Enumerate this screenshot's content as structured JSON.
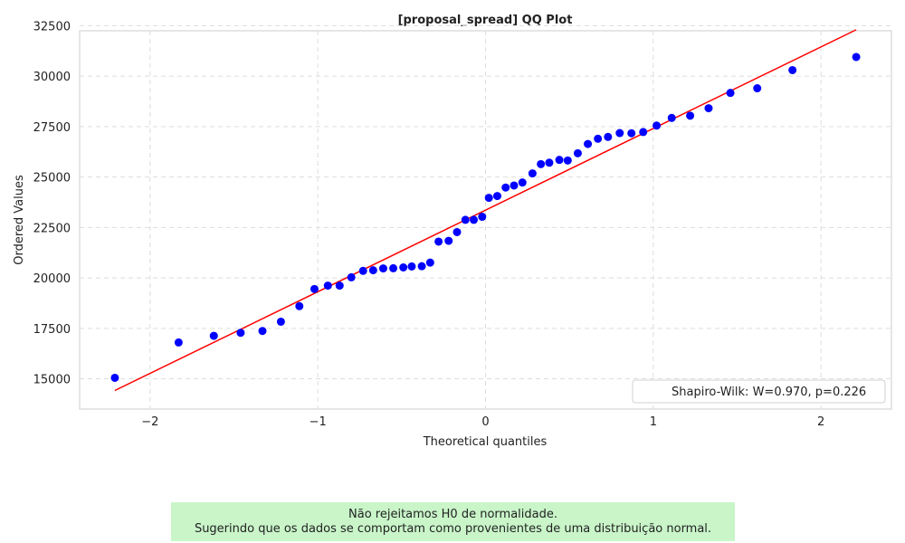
{
  "chart_data": {
    "type": "scatter",
    "title": "[proposal_spread] QQ Plot",
    "xlabel": "Theoretical quantiles",
    "ylabel": "Ordered Values",
    "xlim": [
      -2.42,
      2.42
    ],
    "ylim": [
      13500,
      32250
    ],
    "xticks": [
      -2,
      -1,
      0,
      1,
      2
    ],
    "xtick_labels": [
      "−2",
      "−1",
      "0",
      "1",
      "2"
    ],
    "yticks": [
      15000,
      17500,
      20000,
      22500,
      25000,
      27500,
      30000,
      32500
    ],
    "ytick_labels": [
      "15000",
      "17500",
      "20000",
      "22500",
      "25000",
      "27500",
      "30000",
      "32500"
    ],
    "grid": true,
    "legend_position": "lower-right",
    "legend_text": "Shapiro-Wilk: W=0.970, p=0.226",
    "point_color": "#0000ff",
    "line_color": "#ff0000",
    "points": [
      {
        "x": -2.21,
        "y": 15050
      },
      {
        "x": -1.83,
        "y": 16800
      },
      {
        "x": -1.62,
        "y": 17130
      },
      {
        "x": -1.46,
        "y": 17280
      },
      {
        "x": -1.33,
        "y": 17370
      },
      {
        "x": -1.22,
        "y": 17830
      },
      {
        "x": -1.11,
        "y": 18600
      },
      {
        "x": -1.02,
        "y": 19450
      },
      {
        "x": -0.94,
        "y": 19620
      },
      {
        "x": -0.87,
        "y": 19620
      },
      {
        "x": -0.8,
        "y": 20030
      },
      {
        "x": -0.73,
        "y": 20350
      },
      {
        "x": -0.67,
        "y": 20380
      },
      {
        "x": -0.61,
        "y": 20470
      },
      {
        "x": -0.55,
        "y": 20480
      },
      {
        "x": -0.49,
        "y": 20520
      },
      {
        "x": -0.44,
        "y": 20570
      },
      {
        "x": -0.38,
        "y": 20580
      },
      {
        "x": -0.33,
        "y": 20760
      },
      {
        "x": -0.28,
        "y": 21800
      },
      {
        "x": -0.22,
        "y": 21840
      },
      {
        "x": -0.17,
        "y": 22270
      },
      {
        "x": -0.12,
        "y": 22880
      },
      {
        "x": -0.07,
        "y": 22880
      },
      {
        "x": -0.02,
        "y": 23030
      },
      {
        "x": 0.02,
        "y": 23970
      },
      {
        "x": 0.07,
        "y": 24060
      },
      {
        "x": 0.12,
        "y": 24480
      },
      {
        "x": 0.17,
        "y": 24580
      },
      {
        "x": 0.22,
        "y": 24730
      },
      {
        "x": 0.28,
        "y": 25180
      },
      {
        "x": 0.33,
        "y": 25640
      },
      {
        "x": 0.38,
        "y": 25710
      },
      {
        "x": 0.44,
        "y": 25850
      },
      {
        "x": 0.49,
        "y": 25820
      },
      {
        "x": 0.55,
        "y": 26180
      },
      {
        "x": 0.61,
        "y": 26640
      },
      {
        "x": 0.67,
        "y": 26900
      },
      {
        "x": 0.73,
        "y": 26990
      },
      {
        "x": 0.8,
        "y": 27180
      },
      {
        "x": 0.87,
        "y": 27170
      },
      {
        "x": 0.94,
        "y": 27230
      },
      {
        "x": 1.02,
        "y": 27550
      },
      {
        "x": 1.11,
        "y": 27930
      },
      {
        "x": 1.22,
        "y": 28040
      },
      {
        "x": 1.33,
        "y": 28410
      },
      {
        "x": 1.46,
        "y": 29170
      },
      {
        "x": 1.62,
        "y": 29400
      },
      {
        "x": 1.83,
        "y": 30300
      },
      {
        "x": 2.21,
        "y": 30950
      }
    ],
    "fit_line": [
      {
        "x": -2.21,
        "y": 14420
      },
      {
        "x": 2.21,
        "y": 32300
      }
    ]
  },
  "note": {
    "line1": "Não rejeitamos H0 de normalidade.",
    "line2": "Sugerindo que os dados se comportam como provenientes de uma distribuição normal."
  }
}
